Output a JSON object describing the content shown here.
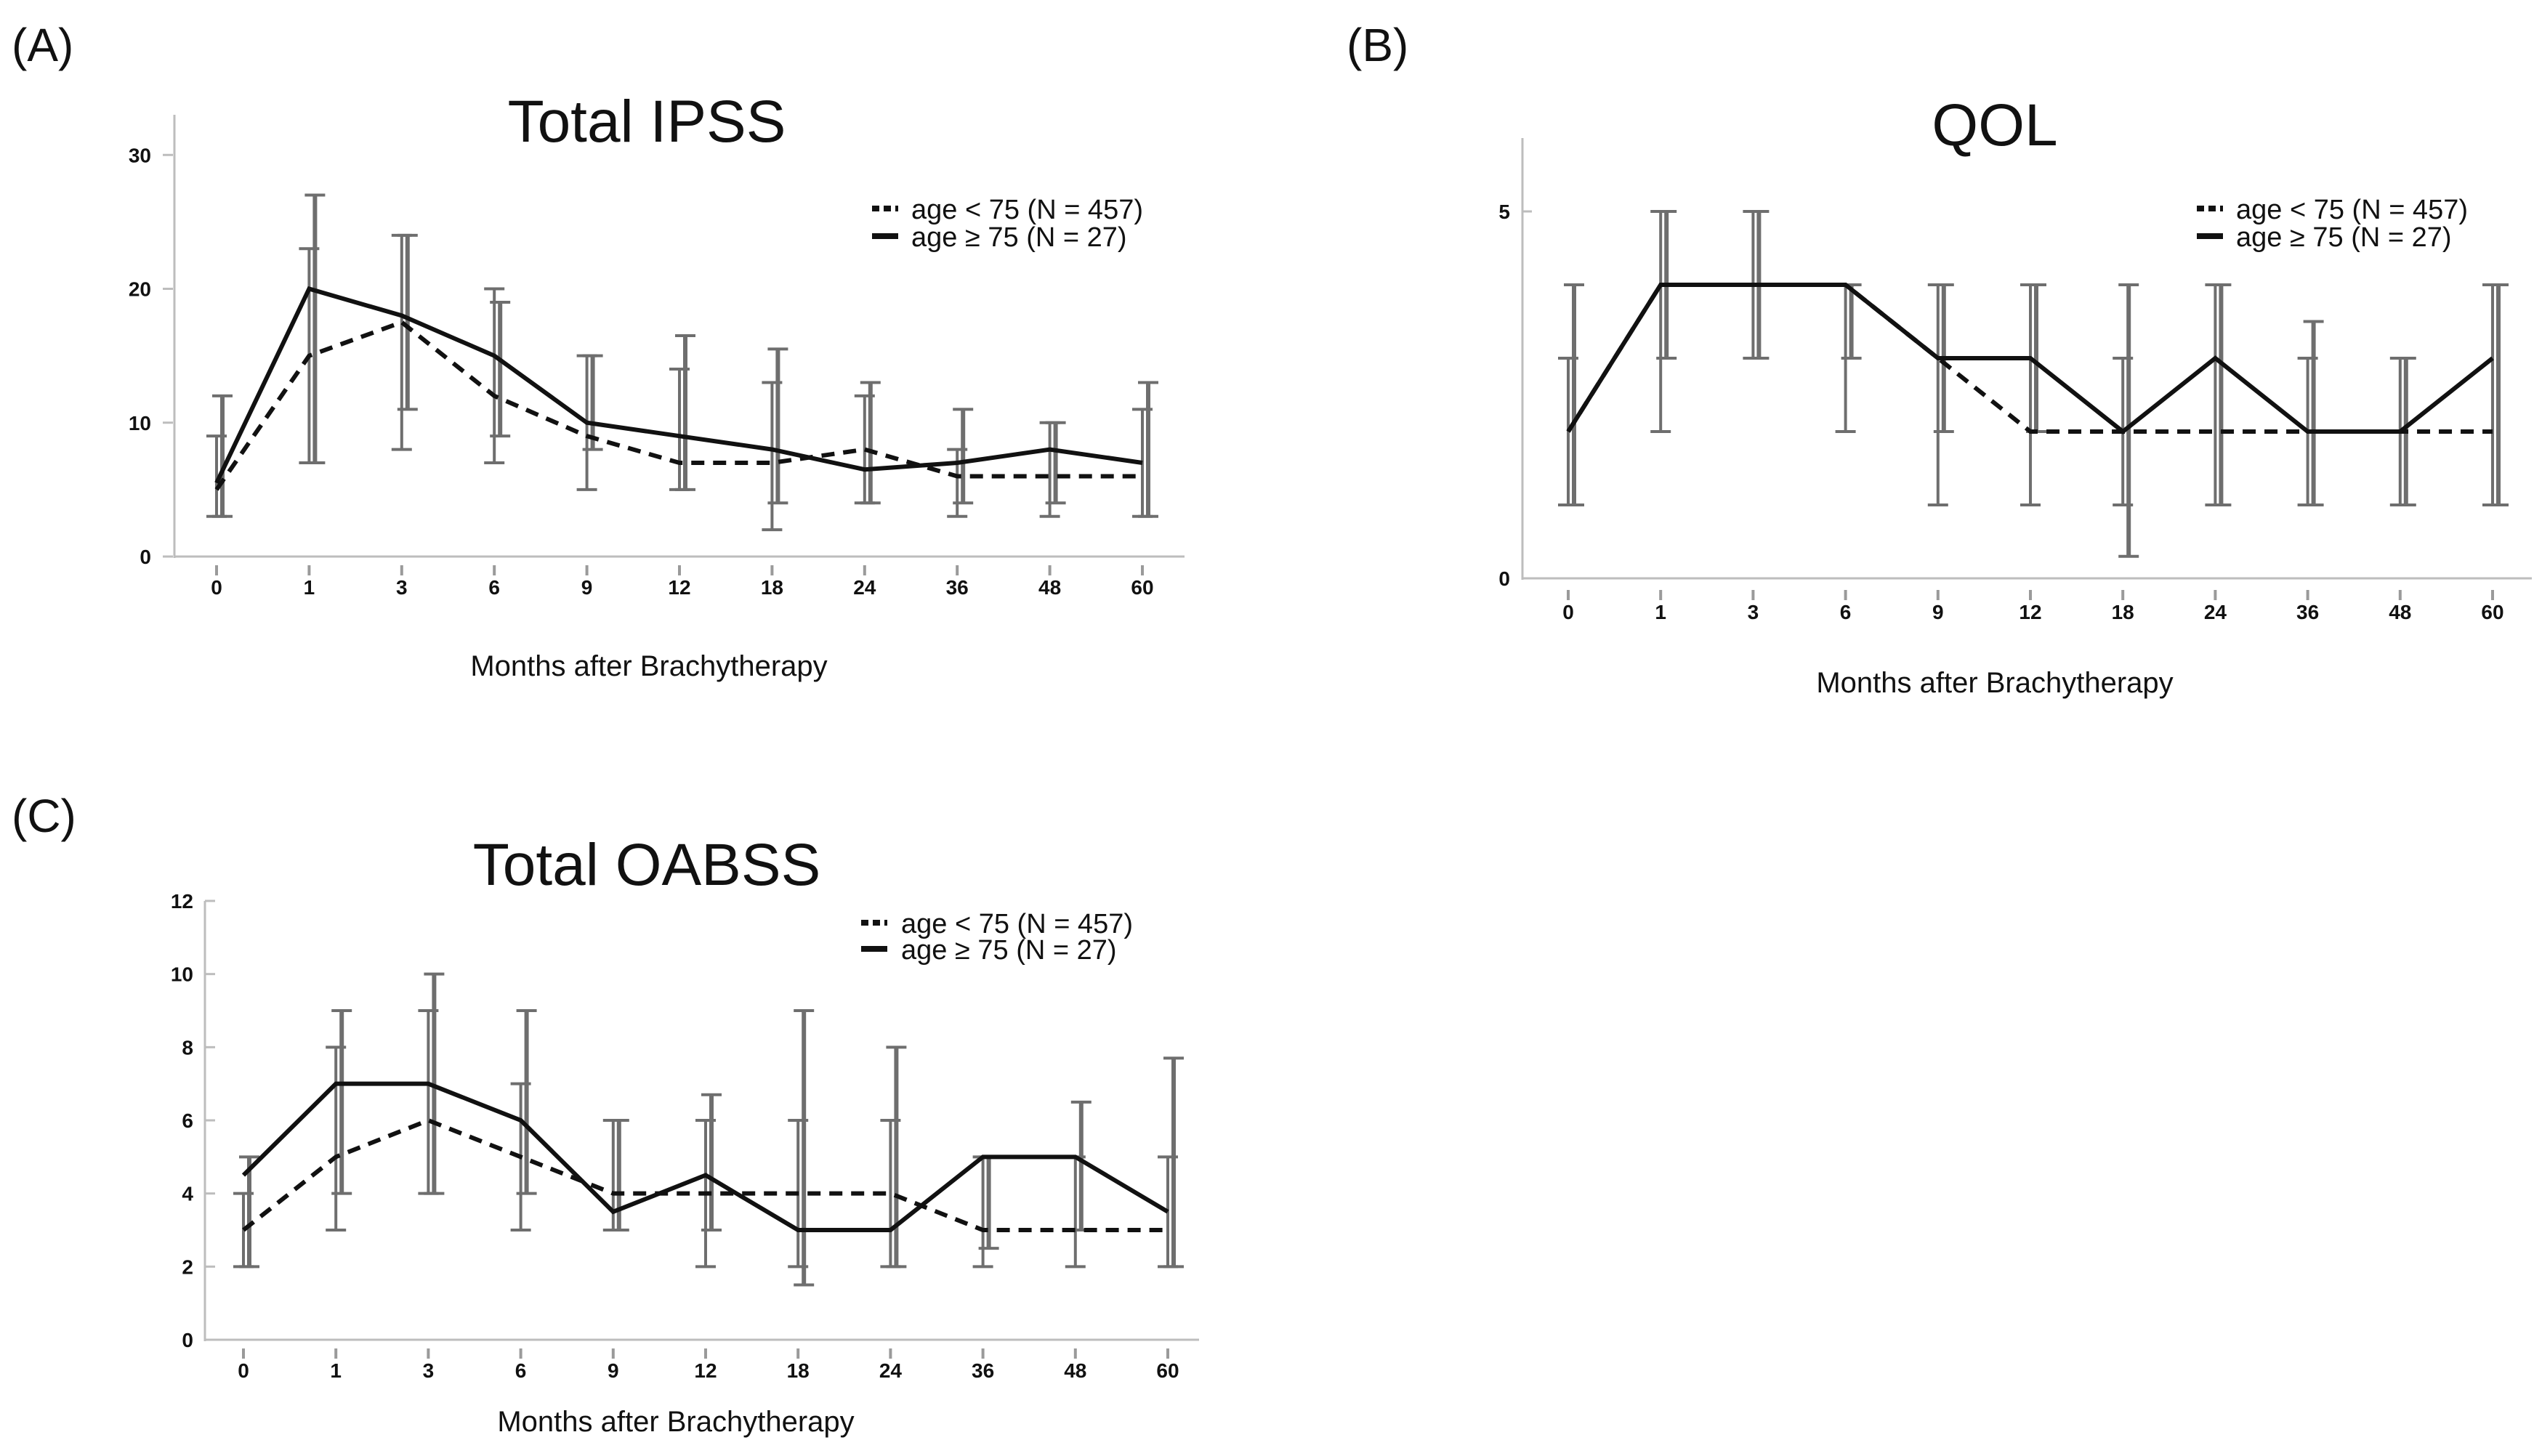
{
  "figure": {
    "background": "#ffffff",
    "ink": "#111111",
    "errorbar_color": "#6e6e6e",
    "axis_color": "#bdbdbd"
  },
  "chart_data": [
    {
      "panel": "(A)",
      "type": "line",
      "title": "Total IPSS",
      "xlabel": "Months after Brachytherapy",
      "ylabel": "",
      "categories": [
        "0",
        "1",
        "3",
        "6",
        "9",
        "12",
        "18",
        "24",
        "36",
        "48",
        "60"
      ],
      "ylim": [
        0,
        33
      ],
      "yticks": [
        0,
        10,
        20,
        30
      ],
      "legend_position": "top-right",
      "series": [
        {
          "name": "age < 75 (N = 457)",
          "style": "dashed",
          "values": [
            5,
            15,
            17.5,
            12,
            9,
            7,
            7,
            8,
            6,
            6,
            6
          ],
          "err_low": [
            3,
            7,
            8,
            7,
            5,
            5,
            2,
            4,
            3,
            3,
            3
          ],
          "err_high": [
            9,
            23,
            24,
            20,
            15,
            14,
            13,
            12,
            8,
            10,
            11
          ]
        },
        {
          "name": "age ≥ 75 (N = 27)",
          "style": "solid",
          "values": [
            5.5,
            20,
            18,
            15,
            10,
            9,
            8,
            6.5,
            7,
            8,
            7
          ],
          "err_low": [
            3,
            7,
            11,
            9,
            8,
            5,
            4,
            4,
            4,
            4,
            3
          ],
          "err_high": [
            12,
            27,
            24,
            19,
            15,
            16.5,
            15.5,
            13,
            11,
            10,
            13
          ]
        }
      ]
    },
    {
      "panel": "(B)",
      "type": "line",
      "title": "QOL",
      "xlabel": "Months after Brachytherapy",
      "ylabel": "",
      "categories": [
        "0",
        "1",
        "3",
        "6",
        "9",
        "12",
        "18",
        "24",
        "36",
        "48",
        "60"
      ],
      "ylim": [
        0,
        6
      ],
      "yticks": [
        0,
        5
      ],
      "legend_position": "top-right",
      "series": [
        {
          "name": "age < 75 (N = 457)",
          "style": "dashed",
          "values": [
            2,
            4,
            4,
            4,
            3,
            2,
            2,
            2,
            2,
            2,
            2
          ],
          "err_low": [
            1,
            2,
            3,
            2,
            1,
            1,
            1,
            1,
            1,
            1,
            1
          ],
          "err_high": [
            3,
            5,
            5,
            4,
            4,
            4,
            3,
            4,
            3,
            3,
            4
          ]
        },
        {
          "name": "age ≥ 75 (N = 27)",
          "style": "solid",
          "values": [
            2,
            4,
            4,
            4,
            3,
            3,
            2,
            3,
            2,
            2,
            3
          ],
          "err_low": [
            1,
            3,
            3,
            3,
            2,
            2,
            0.3,
            1,
            1,
            1,
            1
          ],
          "err_high": [
            4,
            5,
            5,
            4,
            4,
            4,
            4,
            4,
            3.5,
            3,
            4
          ]
        }
      ]
    },
    {
      "panel": "(C)",
      "type": "line",
      "title": "Total OABSS",
      "xlabel": "Months after Brachytherapy",
      "ylabel": "",
      "categories": [
        "0",
        "1",
        "3",
        "6",
        "9",
        "12",
        "18",
        "24",
        "36",
        "48",
        "60"
      ],
      "ylim": [
        0,
        12
      ],
      "yticks": [
        0,
        2,
        4,
        6,
        8,
        10,
        12
      ],
      "legend_position": "top-right",
      "series": [
        {
          "name": "age < 75 (N = 457)",
          "style": "dashed",
          "values": [
            3,
            5,
            6,
            5,
            4,
            4,
            4,
            4,
            3,
            3,
            3
          ],
          "err_low": [
            2,
            3,
            4,
            3,
            3,
            2,
            2,
            2,
            2,
            2,
            2
          ],
          "err_high": [
            4,
            8,
            9,
            7,
            6,
            6,
            6,
            6,
            5,
            5,
            5
          ]
        },
        {
          "name": "age ≥ 75 (N = 27)",
          "style": "solid",
          "values": [
            4.5,
            7,
            7,
            6,
            3.5,
            4.5,
            3,
            3,
            5,
            5,
            3.5
          ],
          "err_low": [
            2,
            4,
            4,
            4,
            3,
            3,
            1.5,
            2,
            2.5,
            3,
            2
          ],
          "err_high": [
            5,
            9,
            10,
            9,
            6,
            6.7,
            9,
            8,
            5,
            6.5,
            7.7
          ]
        }
      ]
    }
  ]
}
